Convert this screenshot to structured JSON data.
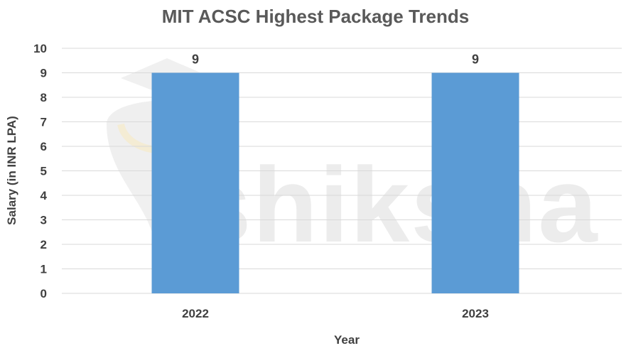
{
  "watermark": {
    "text": "shiksha",
    "icon": "shiksha-logo-icon"
  },
  "colors": {
    "bar": "#5b9bd5",
    "grid": "#d9d9d9",
    "text": "#404040",
    "title": "#595959"
  },
  "chart_data": {
    "type": "bar",
    "title": "MIT ACSC Highest Package Trends",
    "xlabel": "Year",
    "ylabel": "Salary (in INR LPA)",
    "categories": [
      "2022",
      "2023"
    ],
    "values": [
      9,
      9
    ],
    "data_labels": [
      "9",
      "9"
    ],
    "ylim": [
      0,
      10
    ],
    "yticks": [
      0,
      1,
      2,
      3,
      4,
      5,
      6,
      7,
      8,
      9,
      10
    ],
    "grid": true,
    "legend": "none"
  }
}
